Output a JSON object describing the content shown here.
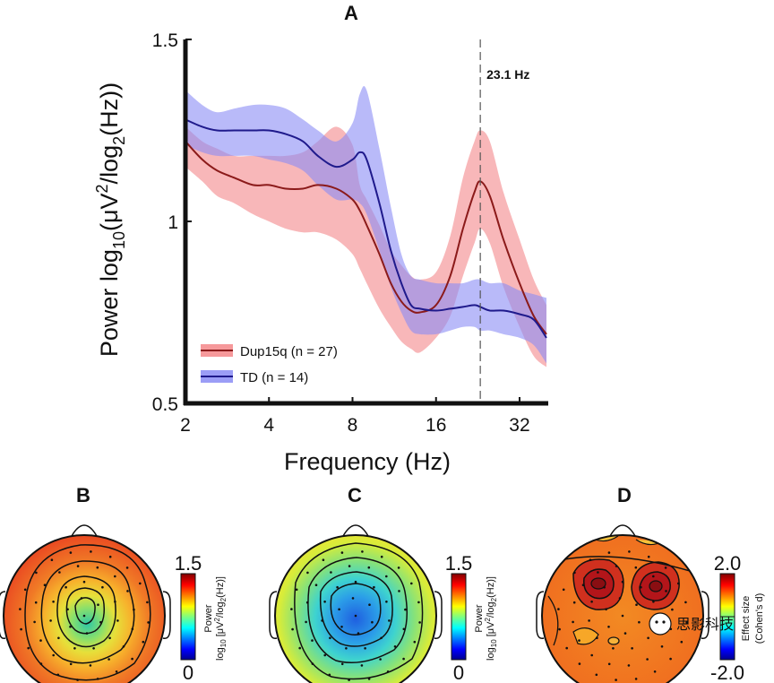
{
  "chart_data": [
    {
      "panel": "A",
      "type": "line",
      "x_scale": "log2",
      "xlim": [
        2,
        40
      ],
      "ylim": [
        0.5,
        1.5
      ],
      "xticks": [
        "2",
        "4",
        "8",
        "16",
        "32"
      ],
      "yticks": [
        "0.5",
        "1",
        "1.5"
      ],
      "xlabel": "Frequency (Hz)",
      "ylabel_parts": {
        "a": "Power log",
        "b": "10",
        "c": "(μV",
        "d": "2",
        "e": "/log",
        "f": "2",
        "g": "(Hz))"
      },
      "annotation": "23.1 Hz",
      "annotation_x": 23.1,
      "x": [
        2,
        2.3,
        2.6,
        3,
        3.5,
        4,
        4.6,
        5.3,
        6,
        7,
        8,
        8.5,
        9,
        10,
        11,
        12,
        13,
        14,
        16,
        18,
        20,
        22,
        23.1,
        25,
        28,
        32,
        36,
        40
      ],
      "series": [
        {
          "name": "Dup15q (n = 27)",
          "color": "#8b1a1a",
          "band_color": "#f4878a",
          "mean": [
            1.22,
            1.17,
            1.14,
            1.12,
            1.1,
            1.1,
            1.09,
            1.09,
            1.1,
            1.09,
            1.06,
            1.03,
            0.99,
            0.91,
            0.83,
            0.78,
            0.755,
            0.75,
            0.77,
            0.85,
            0.98,
            1.08,
            1.11,
            1.07,
            0.95,
            0.83,
            0.74,
            0.69
          ],
          "upper": [
            1.26,
            1.22,
            1.2,
            1.18,
            1.18,
            1.18,
            1.18,
            1.19,
            1.22,
            1.26,
            1.21,
            1.1,
            1.06,
            0.99,
            0.92,
            0.88,
            0.85,
            0.84,
            0.86,
            0.96,
            1.12,
            1.22,
            1.25,
            1.22,
            1.08,
            0.95,
            0.84,
            0.77
          ],
          "lower": [
            1.15,
            1.11,
            1.07,
            1.05,
            1.02,
            1.0,
            0.98,
            0.97,
            0.97,
            0.95,
            0.91,
            0.87,
            0.83,
            0.76,
            0.71,
            0.67,
            0.65,
            0.64,
            0.68,
            0.74,
            0.85,
            0.94,
            0.98,
            0.94,
            0.82,
            0.71,
            0.63,
            0.6
          ]
        },
        {
          "name": "TD (n = 14)",
          "color": "#1f1a8c",
          "band_color": "#8a8cf5",
          "mean": [
            1.28,
            1.26,
            1.25,
            1.25,
            1.25,
            1.25,
            1.24,
            1.22,
            1.18,
            1.15,
            1.17,
            1.19,
            1.17,
            1.05,
            0.92,
            0.83,
            0.77,
            0.76,
            0.755,
            0.76,
            0.765,
            0.77,
            0.765,
            0.755,
            0.755,
            0.745,
            0.73,
            0.68
          ],
          "upper": [
            1.36,
            1.32,
            1.3,
            1.31,
            1.32,
            1.32,
            1.31,
            1.28,
            1.25,
            1.22,
            1.27,
            1.35,
            1.36,
            1.2,
            1.04,
            0.91,
            0.85,
            0.84,
            0.83,
            0.83,
            0.83,
            0.84,
            0.84,
            0.83,
            0.83,
            0.81,
            0.8,
            0.79
          ],
          "lower": [
            1.21,
            1.19,
            1.18,
            1.18,
            1.18,
            1.17,
            1.16,
            1.14,
            1.1,
            1.06,
            1.06,
            1.05,
            1.02,
            0.92,
            0.82,
            0.75,
            0.7,
            0.69,
            0.69,
            0.7,
            0.71,
            0.71,
            0.7,
            0.7,
            0.69,
            0.68,
            0.66,
            0.61
          ]
        }
      ]
    },
    {
      "panel": "B",
      "type": "heatmap",
      "colorbar_max": "1.5",
      "colorbar_min": "0",
      "colorbar_label_parts": {
        "a": "Power",
        "b": "log",
        "c": "10",
        "d": " [μV",
        "e": "2",
        "f": "/log",
        "g": "2",
        "h": "(Hz)]"
      },
      "center_color": "#2ec7a6",
      "edge_color": "#ee4a22"
    },
    {
      "panel": "C",
      "type": "heatmap",
      "colorbar_max": "1.5",
      "colorbar_min": "0",
      "colorbar_label_parts": {
        "a": "Power",
        "b": "log",
        "c": "10",
        "d": " [μV",
        "e": "2",
        "f": "/log",
        "g": "2",
        "h": "(Hz)]"
      },
      "center_color": "#1f6fe0",
      "edge_color": "#d7ec3a"
    },
    {
      "panel": "D",
      "type": "heatmap",
      "colorbar_max": "2.0",
      "colorbar_min": "-2.0",
      "colorbar_label_a": "Effect size",
      "colorbar_label_b": "(Cohen's d)",
      "center_color": "#b3151a",
      "edge_color": "#f39a1e"
    }
  ],
  "watermark": "思影科技"
}
